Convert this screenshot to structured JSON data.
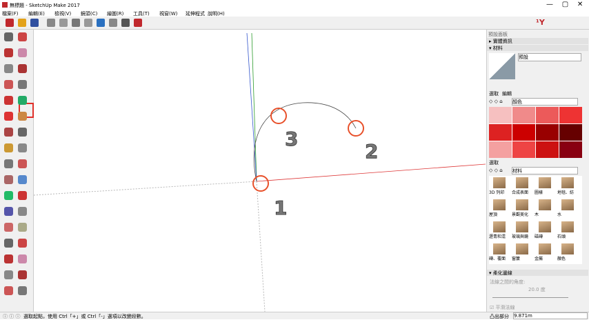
{
  "window": {
    "title": "無標題 - SketchUp Make 2017"
  },
  "menu": [
    "檔案(F)",
    "編輯(E)",
    "檢視(V)",
    "鏡頭(C)",
    "繪圖(R)",
    "工具(T)",
    "視窗(W)",
    "延伸程式",
    "說明(H)"
  ],
  "annotations": [
    "1",
    "2",
    "3"
  ],
  "panel": {
    "title": "預設面板",
    "entity_info": "▸ 實體資訊",
    "materials": "▾ 材料",
    "default_name": "預設",
    "tabs": [
      "選取",
      "編輯"
    ],
    "library": "顏色",
    "select_heading": "選取",
    "library2": "材料",
    "items": [
      "3D 列印",
      "合成表面",
      "圖樣",
      "地毯、紡",
      "屋頂",
      "景觀美化",
      "木",
      "水",
      "瀝青和混",
      "玻璃與鏡",
      "磁磚",
      "石頭",
      "磚、覆面",
      "窗簾",
      "金屬",
      "顏色"
    ],
    "soften": "▾ 柔化邊線",
    "angle_label": "法線之間的角度:",
    "angle_value": "20.0 度",
    "smooth": "平滑法線"
  },
  "status": {
    "message": "選取起點，使用 Ctrl「+」或 Ctrl「-」選項以改變段數。",
    "measure_label": "凸出部分",
    "measure_value": "9.871m"
  }
}
